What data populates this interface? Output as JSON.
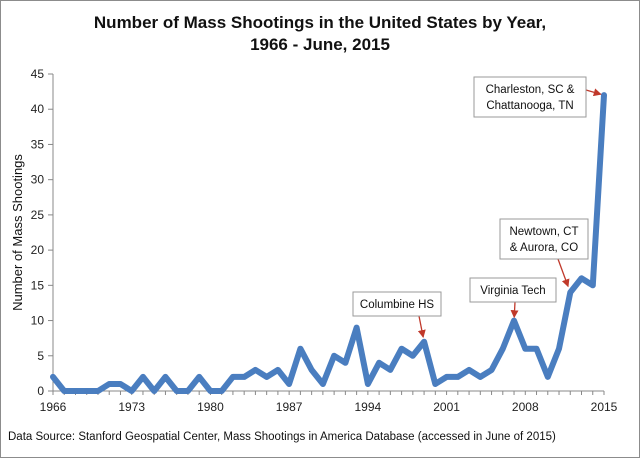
{
  "chart_data": {
    "type": "line",
    "title_line1": "Number of Mass Shootings in the United States by Year,",
    "title_line2": "1966 - June, 2015",
    "xlabel": "",
    "ylabel": "Number of Mass Shootings",
    "xlim": [
      1966,
      2015
    ],
    "ylim": [
      0,
      45
    ],
    "xticks": [
      1966,
      1973,
      1980,
      1987,
      1994,
      2001,
      2008,
      2015
    ],
    "yticks": [
      0,
      5,
      10,
      15,
      20,
      25,
      30,
      35,
      40,
      45
    ],
    "grid": false,
    "series": [
      {
        "name": "Mass Shootings",
        "color": "#4a7ec0",
        "x": [
          1966,
          1967,
          1968,
          1969,
          1970,
          1971,
          1972,
          1973,
          1974,
          1975,
          1976,
          1977,
          1978,
          1979,
          1980,
          1981,
          1982,
          1983,
          1984,
          1985,
          1986,
          1987,
          1988,
          1989,
          1990,
          1991,
          1992,
          1993,
          1994,
          1995,
          1996,
          1997,
          1998,
          1999,
          2000,
          2001,
          2002,
          2003,
          2004,
          2005,
          2006,
          2007,
          2008,
          2009,
          2010,
          2011,
          2012,
          2013,
          2014,
          2015
        ],
        "values": [
          2,
          0,
          0,
          0,
          0,
          1,
          1,
          0,
          2,
          0,
          2,
          0,
          0,
          2,
          0,
          0,
          2,
          2,
          3,
          2,
          3,
          1,
          6,
          3,
          1,
          5,
          4,
          9,
          1,
          4,
          3,
          6,
          5,
          7,
          1,
          2,
          2,
          3,
          2,
          3,
          6,
          10,
          6,
          6,
          2,
          6,
          14,
          16,
          15,
          42
        ]
      }
    ],
    "annotations": [
      {
        "lines": [
          "Columbine HS"
        ],
        "x": 1999,
        "y": 7
      },
      {
        "lines": [
          "Virginia Tech"
        ],
        "x": 2007,
        "y": 10
      },
      {
        "lines": [
          "Newtown, CT",
          "& Aurora, CO"
        ],
        "x": 2012,
        "y": 14
      },
      {
        "lines": [
          "Charleston, SC &",
          "Chattanooga, TN"
        ],
        "x": 2015,
        "y": 42
      }
    ],
    "source": "Data Source: Stanford Geospatial Center, Mass Shootings in America Database (accessed in June of 2015)"
  },
  "colors": {
    "line": "#4a7ec0",
    "arrow": "#c0392b",
    "axis": "#888888",
    "box_border": "#9a9a9a"
  }
}
